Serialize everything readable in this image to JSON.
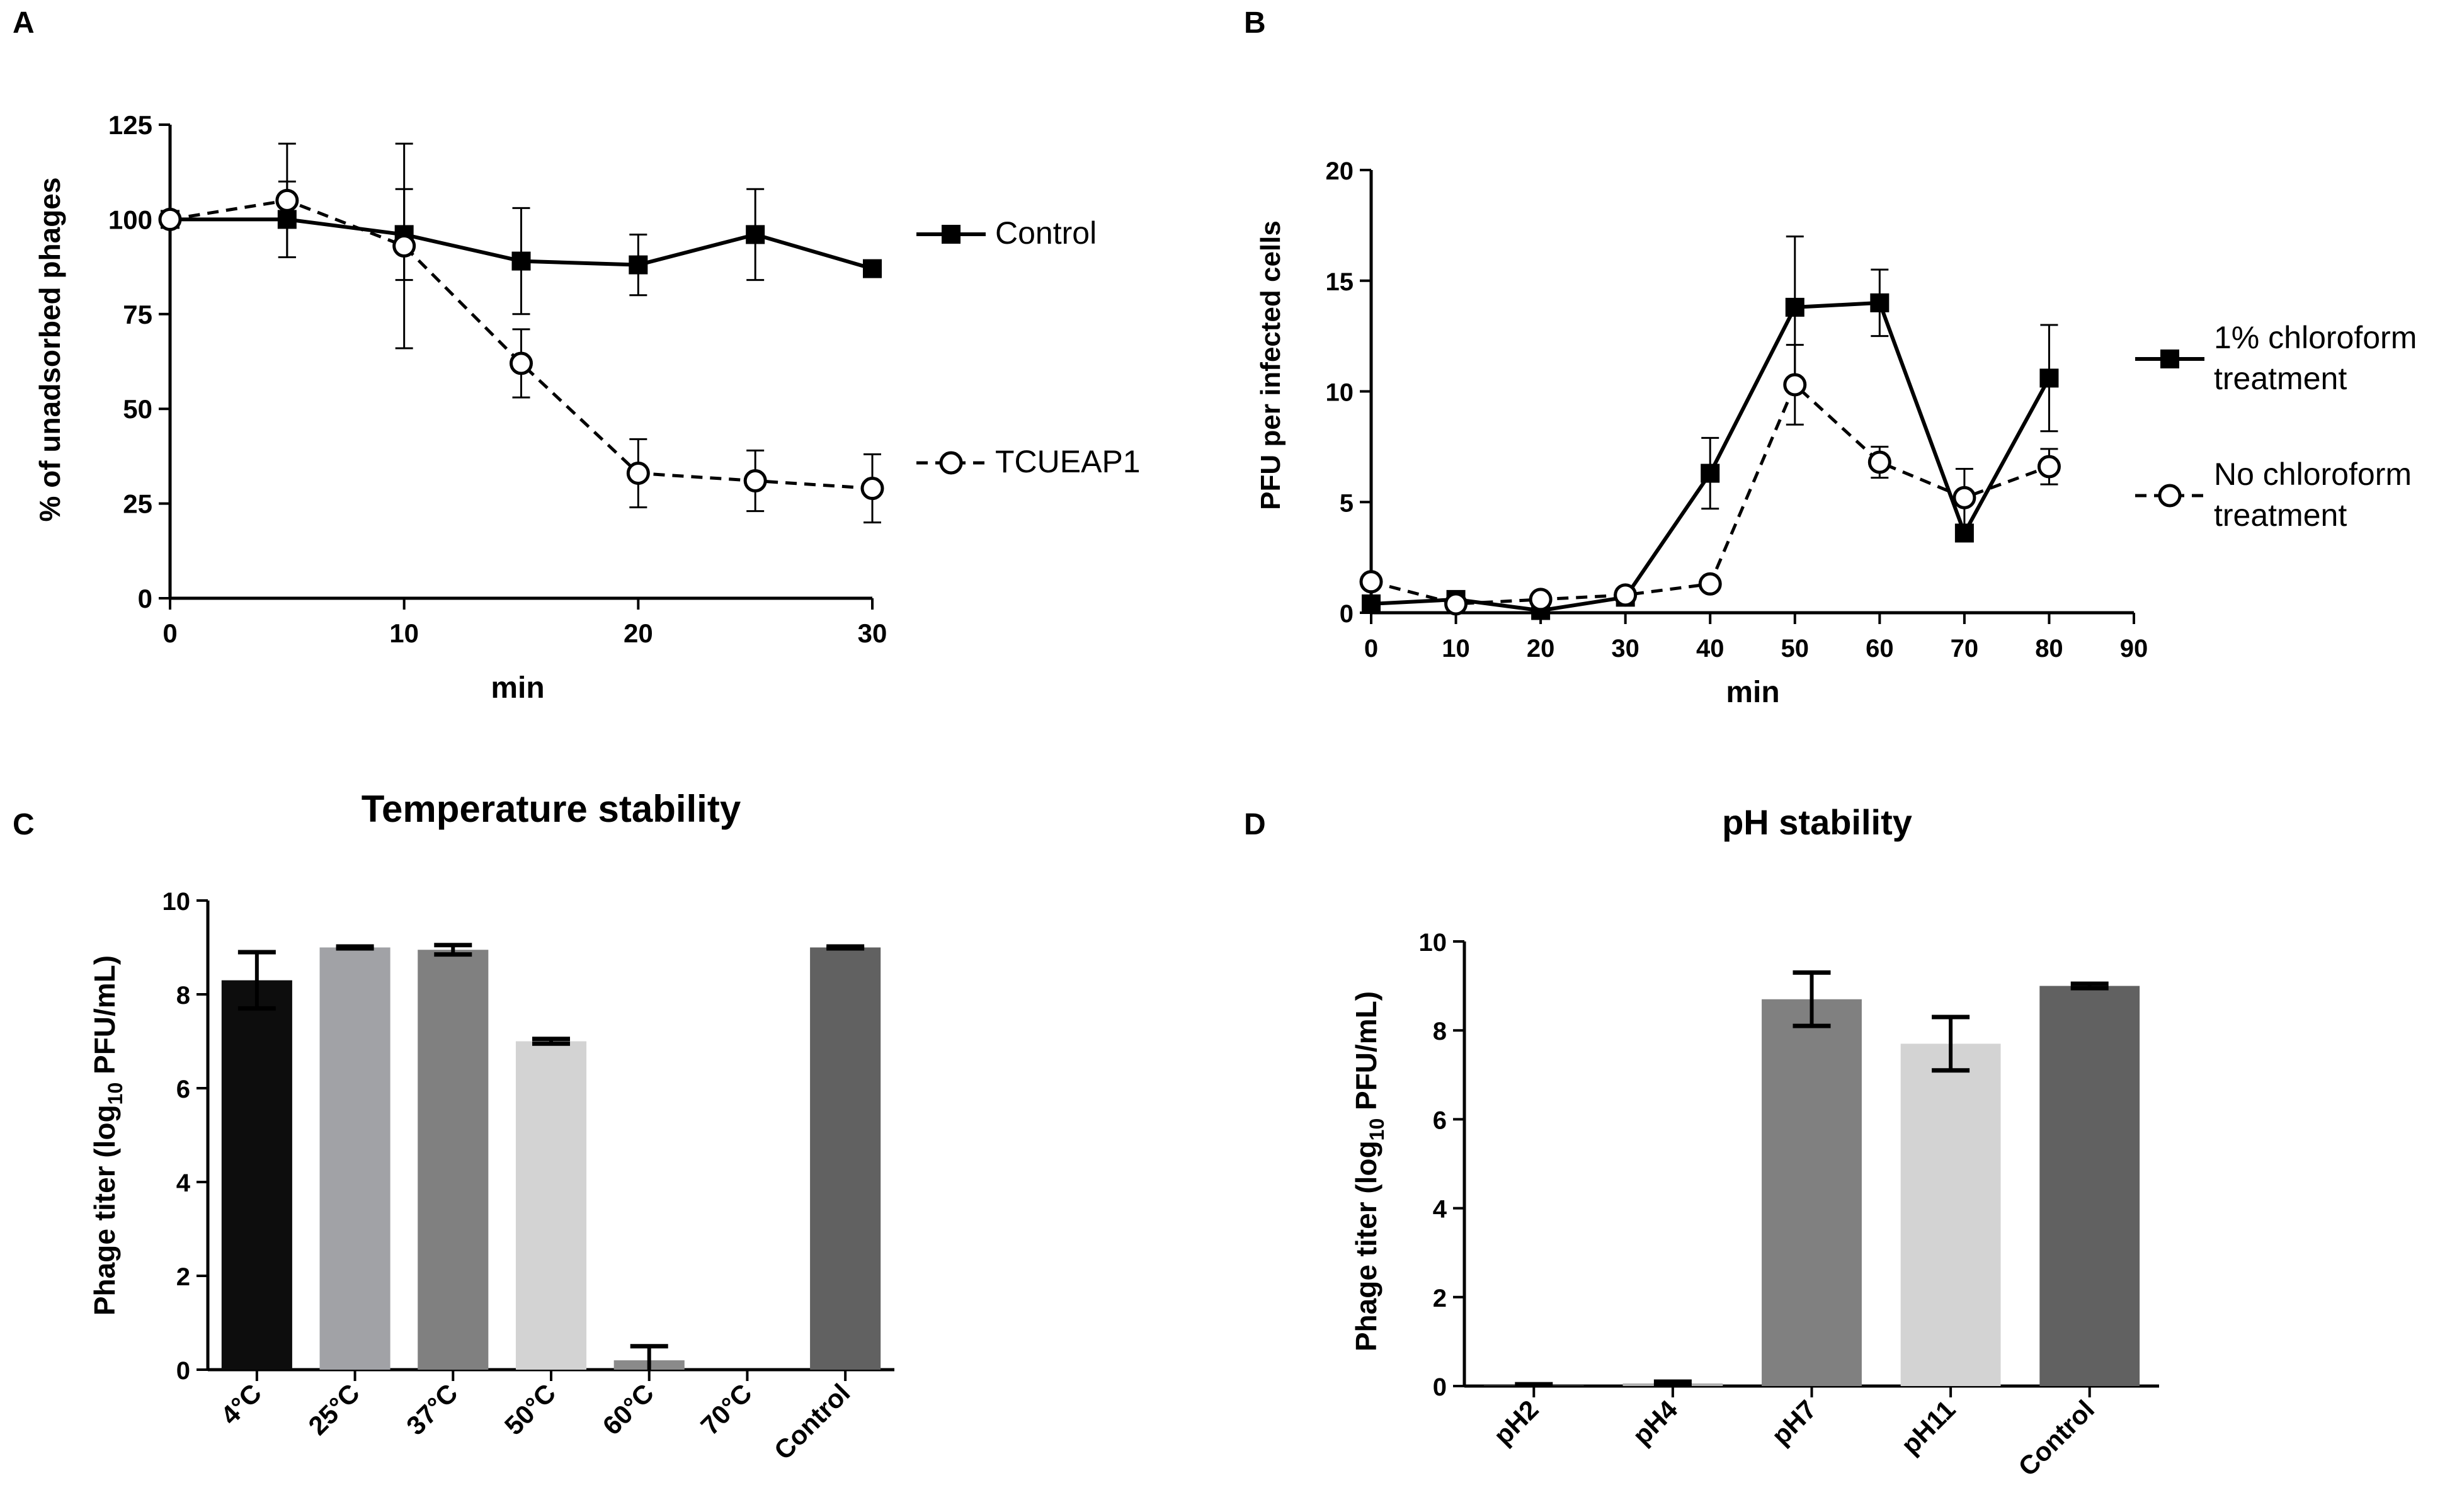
{
  "chart_data": [
    {
      "panel": "A",
      "type": "line",
      "title": "",
      "xlabel": "min",
      "ylabel": "% of unadsorbed phages",
      "xlim": [
        0,
        30
      ],
      "ylim": [
        0,
        125
      ],
      "xticks": [
        0,
        10,
        20,
        30
      ],
      "yticks": [
        0,
        25,
        50,
        75,
        100,
        125
      ],
      "series": [
        {
          "name": "Control",
          "marker": "square",
          "line": "solid",
          "x": [
            0,
            5,
            10,
            15,
            20,
            25,
            30
          ],
          "y": [
            100,
            100,
            96,
            89,
            88,
            96,
            87
          ],
          "err": [
            0,
            10,
            12,
            14,
            8,
            12,
            0
          ]
        },
        {
          "name": "TCUEAP1",
          "marker": "circle",
          "line": "dashed",
          "x": [
            0,
            5,
            10,
            15,
            20,
            25,
            30
          ],
          "y": [
            100,
            105,
            93,
            62,
            33,
            31,
            29
          ],
          "err": [
            0,
            15,
            27,
            9,
            9,
            8,
            9
          ]
        }
      ],
      "legend": "right"
    },
    {
      "panel": "B",
      "type": "line",
      "title": "",
      "xlabel": "min",
      "ylabel": "PFU per infected cells",
      "xlim": [
        0,
        90
      ],
      "ylim": [
        0,
        20
      ],
      "xticks": [
        0,
        10,
        20,
        30,
        40,
        50,
        60,
        70,
        80,
        90
      ],
      "yticks": [
        0,
        5,
        10,
        15,
        20
      ],
      "series": [
        {
          "name": "1% chloroform treatment",
          "legend_lines": [
            "1% chloroform",
            "treatment"
          ],
          "marker": "square",
          "line": "solid",
          "x": [
            0,
            10,
            20,
            30,
            40,
            50,
            60,
            70,
            80
          ],
          "y": [
            0.4,
            0.6,
            0.1,
            0.7,
            6.3,
            13.8,
            14.0,
            3.6,
            10.6
          ],
          "err": [
            0,
            0,
            0,
            0,
            1.6,
            3.2,
            1.5,
            0,
            2.4
          ]
        },
        {
          "name": "No chloroform treatment",
          "legend_lines": [
            "No chloroform",
            "treatment"
          ],
          "marker": "circle",
          "line": "dashed",
          "x": [
            0,
            10,
            20,
            30,
            40,
            50,
            60,
            70,
            80
          ],
          "y": [
            1.4,
            0.4,
            0.6,
            0.8,
            1.3,
            10.3,
            6.8,
            5.2,
            6.6
          ],
          "err": [
            0,
            0,
            0,
            0,
            0,
            1.8,
            0.7,
            1.3,
            0.8
          ]
        }
      ],
      "legend": "right"
    },
    {
      "panel": "C",
      "type": "bar",
      "title": "Temperature stability",
      "xlabel": "",
      "ylabel_prefix": "Phage titer (log",
      "ylabel_sub": "10",
      "ylabel_suffix": " PFU/mL)",
      "ylim": [
        0,
        10
      ],
      "yticks": [
        0,
        2,
        4,
        6,
        8,
        10
      ],
      "categories": [
        "4°C",
        "25°C",
        "37°C",
        "50°C",
        "60°C",
        "70°C",
        "Control"
      ],
      "values": [
        8.3,
        9.0,
        8.95,
        7.0,
        0.2,
        0,
        9.0
      ],
      "err": [
        0.6,
        0.02,
        0.1,
        0.05,
        0.3,
        0,
        0.02
      ],
      "colors": [
        "#0d0d0d",
        "#a1a2a6",
        "#808080",
        "#d3d3d3",
        "#8a8a8a",
        "#ffffff",
        "#616161"
      ]
    },
    {
      "panel": "D",
      "type": "bar",
      "title": "pH stability",
      "xlabel": "",
      "ylabel_prefix": "Phage titer (log",
      "ylabel_sub": "10",
      "ylabel_suffix": " PFU/mL)",
      "ylim": [
        0,
        10
      ],
      "yticks": [
        0,
        2,
        4,
        6,
        8,
        10
      ],
      "categories": [
        "pH2",
        "pH4",
        "pH7",
        "pH11",
        "Control"
      ],
      "values": [
        0.02,
        0.06,
        8.7,
        7.7,
        9.0
      ],
      "err": [
        0.02,
        0.04,
        0.6,
        0.6,
        0.05
      ],
      "colors": [
        "#333333",
        "#b0b0b0",
        "#808080",
        "#d3d3d3",
        "#616161"
      ]
    }
  ]
}
